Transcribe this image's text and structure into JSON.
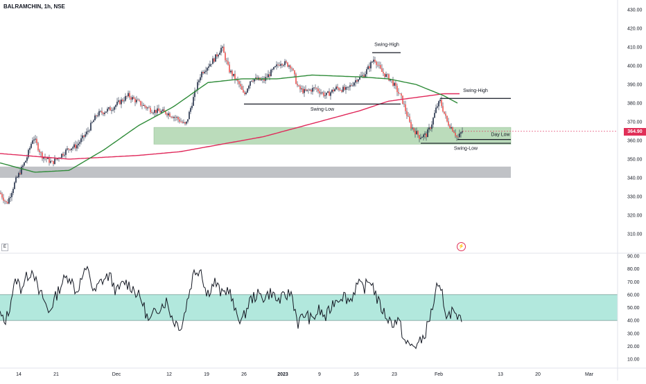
{
  "header": {
    "symbol": "BALRAMCHIN, 1h, NSE"
  },
  "colors": {
    "up": "#26a69a",
    "down": "#ef5350",
    "body": "#1e2a44",
    "ma_short": "#2e8b38",
    "ma_long": "#e0285a",
    "demand_zone": "#b4d9b4",
    "grey_zone": "#b9bbc0",
    "rsi_band": "#b2e8dd",
    "price_badge": "#e03058"
  },
  "last_price_label": "364.90",
  "e_button": "E",
  "flash_icon": "lightning-icon",
  "chart_data": [
    {
      "type": "candlestick",
      "title": "BALRAMCHIN, 1h, NSE",
      "ylim": [
        305,
        435
      ],
      "y_ticks": [
        "430.00",
        "420.00",
        "410.00",
        "400.00",
        "390.00",
        "380.00",
        "370.00",
        "360.00",
        "350.00",
        "340.00",
        "330.00",
        "320.00",
        "310.00"
      ],
      "y_tick_values": [
        430,
        420,
        410,
        400,
        390,
        380,
        370,
        360,
        350,
        340,
        330,
        320,
        310
      ],
      "last_price": 364.9,
      "price_anchors": [
        [
          0,
          332
        ],
        [
          10,
          326
        ],
        [
          22,
          338
        ],
        [
          38,
          350
        ],
        [
          48,
          362
        ],
        [
          60,
          352
        ],
        [
          75,
          348
        ],
        [
          100,
          356
        ],
        [
          110,
          357
        ],
        [
          125,
          364
        ],
        [
          140,
          374
        ],
        [
          160,
          377
        ],
        [
          185,
          384
        ],
        [
          205,
          379
        ],
        [
          220,
          376
        ],
        [
          240,
          375
        ],
        [
          255,
          372
        ],
        [
          268,
          368
        ],
        [
          280,
          384
        ],
        [
          290,
          396
        ],
        [
          300,
          400
        ],
        [
          310,
          404
        ],
        [
          320,
          410
        ],
        [
          330,
          398
        ],
        [
          345,
          390
        ],
        [
          352,
          384
        ],
        [
          362,
          393
        ],
        [
          380,
          392
        ],
        [
          395,
          398
        ],
        [
          405,
          402
        ],
        [
          420,
          400
        ],
        [
          430,
          388
        ],
        [
          440,
          386
        ],
        [
          455,
          388
        ],
        [
          470,
          384
        ],
        [
          485,
          388
        ],
        [
          500,
          387
        ],
        [
          515,
          393
        ],
        [
          525,
          395
        ],
        [
          540,
          404
        ],
        [
          550,
          397
        ],
        [
          565,
          392
        ],
        [
          580,
          382
        ],
        [
          592,
          368
        ],
        [
          605,
          362
        ],
        [
          615,
          363
        ],
        [
          622,
          368
        ],
        [
          630,
          378
        ],
        [
          635,
          381
        ],
        [
          645,
          370
        ],
        [
          655,
          365
        ],
        [
          660,
          361
        ],
        [
          667,
          365
        ]
      ],
      "ma_short": [
        [
          0,
          348
        ],
        [
          50,
          343
        ],
        [
          100,
          344
        ],
        [
          150,
          355
        ],
        [
          200,
          368
        ],
        [
          250,
          378
        ],
        [
          300,
          391
        ],
        [
          350,
          393
        ],
        [
          400,
          393
        ],
        [
          450,
          395
        ],
        [
          520,
          394
        ],
        [
          560,
          393
        ],
        [
          600,
          390
        ],
        [
          640,
          384
        ],
        [
          660,
          380
        ]
      ],
      "ma_long": [
        [
          0,
          353
        ],
        [
          100,
          350
        ],
        [
          200,
          352
        ],
        [
          260,
          354
        ],
        [
          320,
          358
        ],
        [
          380,
          362
        ],
        [
          440,
          368
        ],
        [
          520,
          376
        ],
        [
          560,
          381
        ],
        [
          600,
          383
        ],
        [
          640,
          385
        ],
        [
          665,
          385
        ]
      ],
      "zones": [
        {
          "name": "demand-zone",
          "x0": 222,
          "x1": 737,
          "y0": 358,
          "y1": 367,
          "color": "#b4d9b4"
        },
        {
          "name": "grey-zone",
          "x0": 0,
          "x1": 737,
          "y0": 340,
          "y1": 346,
          "color": "#b9bbc0"
        }
      ],
      "levels": [
        {
          "name": "swing-high-1",
          "x0": 537,
          "x1": 578,
          "y": 407,
          "label": "Swing-High",
          "label_x": 558,
          "label_y": 410.5
        },
        {
          "name": "swing-high-2",
          "x0": 635,
          "x1": 737,
          "y": 382.5,
          "label": "Swing-High",
          "label_x": 686,
          "label_y": 386
        },
        {
          "name": "swing-low-1",
          "x0": 352,
          "x1": 578,
          "y": 379.5,
          "label": "Swing-Low",
          "label_x": 465,
          "label_y": 376
        },
        {
          "name": "swing-low-2",
          "x0": 607,
          "x1": 737,
          "y": 358.5,
          "label": "Swing-Low",
          "label_x": 672,
          "label_y": 355
        },
        {
          "name": "day-low",
          "x0": 660,
          "x1": 737,
          "y": 360.5,
          "label": "Day Low",
          "label_x": 722,
          "label_y": 362.5
        }
      ]
    },
    {
      "type": "line",
      "title": "RSI",
      "ylim": [
        5,
        93
      ],
      "y_ticks": [
        "90.00",
        "80.00",
        "70.00",
        "60.00",
        "50.00",
        "40.00",
        "30.00",
        "20.00",
        "10.00"
      ],
      "y_tick_values": [
        90,
        80,
        70,
        60,
        50,
        40,
        30,
        20,
        10
      ],
      "band": [
        40,
        60
      ],
      "anchors": [
        [
          0,
          45
        ],
        [
          6,
          38
        ],
        [
          12,
          46
        ],
        [
          18,
          62
        ],
        [
          24,
          72
        ],
        [
          30,
          65
        ],
        [
          40,
          75
        ],
        [
          48,
          80
        ],
        [
          55,
          62
        ],
        [
          62,
          58
        ],
        [
          70,
          46
        ],
        [
          80,
          58
        ],
        [
          90,
          70
        ],
        [
          100,
          75
        ],
        [
          110,
          62
        ],
        [
          120,
          75
        ],
        [
          128,
          80
        ],
        [
          135,
          60
        ],
        [
          145,
          70
        ],
        [
          158,
          75
        ],
        [
          168,
          62
        ],
        [
          180,
          70
        ],
        [
          192,
          65
        ],
        [
          205,
          55
        ],
        [
          215,
          38
        ],
        [
          225,
          48
        ],
        [
          240,
          55
        ],
        [
          250,
          40
        ],
        [
          262,
          35
        ],
        [
          270,
          55
        ],
        [
          280,
          78
        ],
        [
          290,
          80
        ],
        [
          298,
          60
        ],
        [
          310,
          70
        ],
        [
          320,
          60
        ],
        [
          330,
          65
        ],
        [
          340,
          45
        ],
        [
          350,
          40
        ],
        [
          360,
          55
        ],
        [
          370,
          60
        ],
        [
          380,
          58
        ],
        [
          392,
          62
        ],
        [
          400,
          55
        ],
        [
          410,
          58
        ],
        [
          420,
          62
        ],
        [
          430,
          38
        ],
        [
          440,
          45
        ],
        [
          450,
          40
        ],
        [
          460,
          48
        ],
        [
          470,
          42
        ],
        [
          482,
          55
        ],
        [
          495,
          60
        ],
        [
          505,
          55
        ],
        [
          515,
          68
        ],
        [
          525,
          65
        ],
        [
          535,
          72
        ],
        [
          545,
          55
        ],
        [
          555,
          45
        ],
        [
          565,
          38
        ],
        [
          575,
          40
        ],
        [
          585,
          22
        ],
        [
          595,
          20
        ],
        [
          605,
          22
        ],
        [
          612,
          28
        ],
        [
          618,
          38
        ],
        [
          625,
          52
        ],
        [
          630,
          65
        ],
        [
          638,
          60
        ],
        [
          645,
          42
        ],
        [
          652,
          48
        ],
        [
          660,
          38
        ],
        [
          667,
          44
        ]
      ]
    }
  ],
  "x_axis": {
    "labels": [
      "14",
      "21",
      "Dec",
      "12",
      "19",
      "26",
      "2023",
      "9",
      "16",
      "23",
      "Feb",
      "13",
      "20",
      "Mar"
    ],
    "positions": [
      27,
      81,
      168,
      244,
      298,
      352,
      408,
      461,
      514,
      569,
      633,
      722,
      776,
      850
    ]
  }
}
